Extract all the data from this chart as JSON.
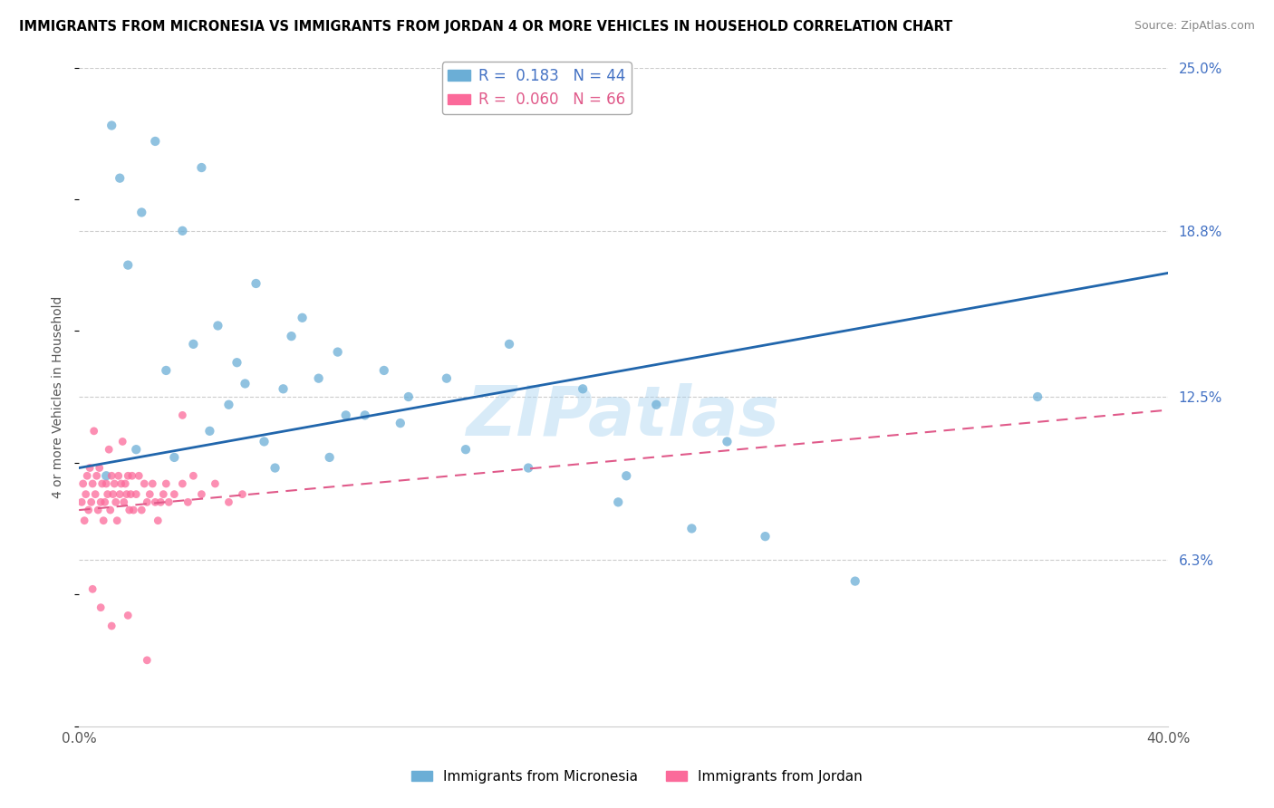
{
  "title": "IMMIGRANTS FROM MICRONESIA VS IMMIGRANTS FROM JORDAN 4 OR MORE VEHICLES IN HOUSEHOLD CORRELATION CHART",
  "source": "Source: ZipAtlas.com",
  "ylabel": "4 or more Vehicles in Household",
  "xlim": [
    0.0,
    40.0
  ],
  "ylim": [
    0.0,
    25.0
  ],
  "xticks": [
    0.0,
    10.0,
    20.0,
    30.0,
    40.0
  ],
  "xticklabels": [
    "0.0%",
    "",
    "",
    "",
    "40.0%"
  ],
  "yticks_right": [
    6.3,
    12.5,
    18.8,
    25.0
  ],
  "ytick_labels_right": [
    "6.3%",
    "12.5%",
    "18.8%",
    "25.0%"
  ],
  "micronesia_color": "#6baed6",
  "jordan_color": "#fb6a9a",
  "micronesia_R": 0.183,
  "micronesia_N": 44,
  "jordan_R": 0.06,
  "jordan_N": 66,
  "trend_micronesia_color": "#2166ac",
  "trend_jordan_color": "#e05a8a",
  "watermark": "ZIPatlas",
  "watermark_color": "#aad4f0",
  "mic_trend_x": [
    0,
    40
  ],
  "mic_trend_y": [
    9.8,
    17.2
  ],
  "jor_trend_x": [
    0,
    40
  ],
  "jor_trend_y": [
    8.2,
    12.0
  ],
  "micronesia_x": [
    1.2,
    2.8,
    1.5,
    2.3,
    4.5,
    3.8,
    1.8,
    6.5,
    8.2,
    5.1,
    7.8,
    9.5,
    4.2,
    5.8,
    8.8,
    3.2,
    6.1,
    7.5,
    5.5,
    11.2,
    9.8,
    13.5,
    15.8,
    12.1,
    10.5,
    18.5,
    21.2,
    23.8,
    20.1,
    2.1,
    4.8,
    6.8,
    9.2,
    11.8,
    14.2,
    16.5,
    19.8,
    22.5,
    25.2,
    28.5,
    35.2,
    1.0,
    3.5,
    7.2
  ],
  "micronesia_y": [
    22.8,
    22.2,
    20.8,
    19.5,
    21.2,
    18.8,
    17.5,
    16.8,
    15.5,
    15.2,
    14.8,
    14.2,
    14.5,
    13.8,
    13.2,
    13.5,
    13.0,
    12.8,
    12.2,
    13.5,
    11.8,
    13.2,
    14.5,
    12.5,
    11.8,
    12.8,
    12.2,
    10.8,
    9.5,
    10.5,
    11.2,
    10.8,
    10.2,
    11.5,
    10.5,
    9.8,
    8.5,
    7.5,
    7.2,
    5.5,
    12.5,
    9.5,
    10.2,
    9.8
  ],
  "jordan_x": [
    0.1,
    0.15,
    0.2,
    0.25,
    0.3,
    0.35,
    0.4,
    0.45,
    0.5,
    0.55,
    0.6,
    0.65,
    0.7,
    0.75,
    0.8,
    0.85,
    0.9,
    0.95,
    1.0,
    1.05,
    1.1,
    1.15,
    1.2,
    1.25,
    1.3,
    1.35,
    1.4,
    1.45,
    1.5,
    1.55,
    1.6,
    1.65,
    1.7,
    1.75,
    1.8,
    1.85,
    1.9,
    1.95,
    2.0,
    2.1,
    2.2,
    2.3,
    2.4,
    2.5,
    2.6,
    2.7,
    2.8,
    2.9,
    3.0,
    3.1,
    3.2,
    3.3,
    3.5,
    3.8,
    4.0,
    4.2,
    4.5,
    5.0,
    5.5,
    6.0,
    0.5,
    0.8,
    1.2,
    1.8,
    2.5,
    3.8
  ],
  "jordan_y": [
    8.5,
    9.2,
    7.8,
    8.8,
    9.5,
    8.2,
    9.8,
    8.5,
    9.2,
    11.2,
    8.8,
    9.5,
    8.2,
    9.8,
    8.5,
    9.2,
    7.8,
    8.5,
    9.2,
    8.8,
    10.5,
    8.2,
    9.5,
    8.8,
    9.2,
    8.5,
    7.8,
    9.5,
    8.8,
    9.2,
    10.8,
    8.5,
    9.2,
    8.8,
    9.5,
    8.2,
    8.8,
    9.5,
    8.2,
    8.8,
    9.5,
    8.2,
    9.2,
    8.5,
    8.8,
    9.2,
    8.5,
    7.8,
    8.5,
    8.8,
    9.2,
    8.5,
    8.8,
    9.2,
    8.5,
    9.5,
    8.8,
    9.2,
    8.5,
    8.8,
    5.2,
    4.5,
    3.8,
    4.2,
    2.5,
    11.8
  ]
}
